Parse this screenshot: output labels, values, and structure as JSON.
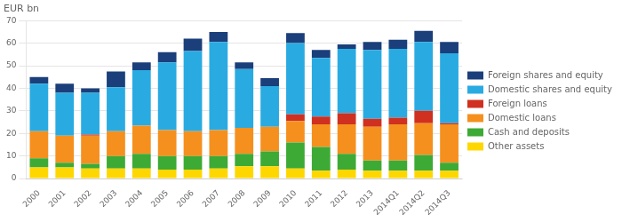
{
  "chart_data": {
    "type": "bar",
    "stacked": true,
    "ylabel": "EUR bn",
    "categories": [
      "2000",
      "2001",
      "2002",
      "2003",
      "2004",
      "2005",
      "2006",
      "2007",
      "2008",
      "2009",
      "2010",
      "2011",
      "2012",
      "2013",
      "2014Q1",
      "2014Q2",
      "2014Q3"
    ],
    "series": [
      {
        "name": "Other assets",
        "color": "#FFD700",
        "values": [
          5.0,
          5.0,
          4.5,
          4.5,
          4.5,
          4.0,
          4.0,
          4.5,
          5.5,
          5.5,
          4.5,
          3.5,
          4.0,
          3.5,
          3.5,
          3.5,
          3.5
        ]
      },
      {
        "name": "Cash and deposits",
        "color": "#3DAA35",
        "values": [
          4.0,
          2.0,
          2.0,
          5.5,
          6.5,
          6.0,
          6.0,
          5.5,
          5.5,
          6.5,
          11.5,
          10.5,
          7.0,
          4.5,
          4.5,
          7.0,
          3.5
        ]
      },
      {
        "name": "Domestic loans",
        "color": "#F5901E",
        "values": [
          12.0,
          12.0,
          12.5,
          11.0,
          12.5,
          11.5,
          11.0,
          11.5,
          11.5,
          11.0,
          9.5,
          10.0,
          13.0,
          15.0,
          16.0,
          14.0,
          17.0
        ]
      },
      {
        "name": "Foreign loans",
        "color": "#D03020",
        "values": [
          0.0,
          0.0,
          0.5,
          0.0,
          0.0,
          0.0,
          0.0,
          0.0,
          0.0,
          0.0,
          3.0,
          3.5,
          5.0,
          3.5,
          3.0,
          5.5,
          0.5
        ]
      },
      {
        "name": "Domestic shares and equity",
        "color": "#29ABE2",
        "values": [
          21.0,
          19.0,
          18.5,
          19.5,
          24.5,
          30.0,
          35.5,
          39.0,
          26.0,
          18.0,
          31.5,
          26.0,
          28.5,
          30.5,
          30.5,
          30.5,
          31.0
        ]
      },
      {
        "name": "Foreign shares and equity",
        "color": "#1A3F7A",
        "values": [
          3.0,
          4.0,
          2.0,
          7.0,
          3.5,
          4.5,
          5.5,
          4.5,
          3.0,
          3.5,
          4.5,
          3.5,
          2.0,
          3.5,
          4.0,
          5.0,
          5.0
        ]
      }
    ],
    "ylim": [
      0,
      70
    ],
    "yticks": [
      0,
      10,
      20,
      30,
      40,
      50,
      60,
      70
    ],
    "grid": true,
    "legend": "right"
  }
}
